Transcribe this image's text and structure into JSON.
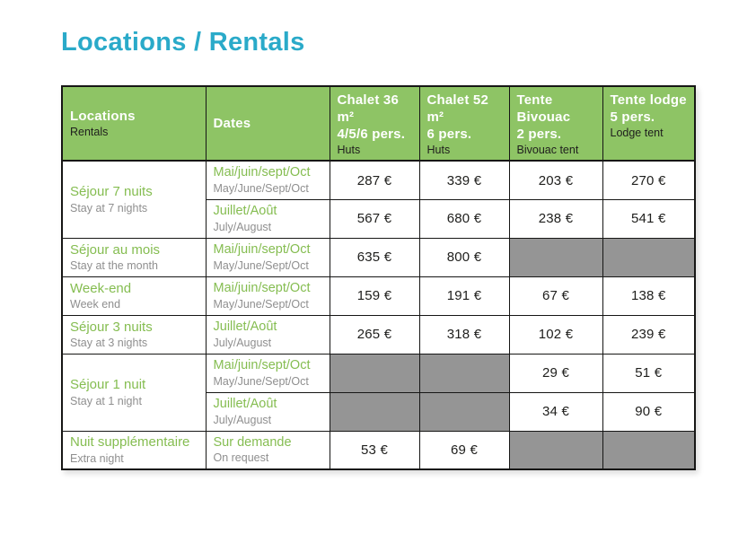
{
  "page": {
    "title": "Locations / Rentals"
  },
  "colors": {
    "title_accent": "#2aaac9",
    "header_green": "#8ec465",
    "label_green": "#85bd51",
    "subtitle_gray": "#8f8f8f",
    "unavailable_gray": "#959595",
    "border_black": "#161615"
  },
  "table": {
    "headers": [
      {
        "line1": "Locations",
        "line2": "Rentals"
      },
      {
        "line1": "Dates"
      },
      {
        "line1": "Chalet 36 m²",
        "line2": "4/5/6 pers.",
        "line3": "Huts"
      },
      {
        "line1": "Chalet 52 m²",
        "line2": "6 pers.",
        "line3": "Huts"
      },
      {
        "line1": "Tente Bivouac",
        "line2": "2 pers.",
        "line3": "Bivouac tent"
      },
      {
        "line1": "Tente lodge",
        "line2": "5 pers.",
        "line3": "Lodge tent"
      }
    ],
    "groups": [
      {
        "label_fr": "Séjour 7 nuits",
        "label_en": "Stay at 7 nights",
        "rows": [
          {
            "date_fr": "Mai/juin/sept/Oct",
            "date_en": "May/June/Sept/Oct",
            "prices": [
              "287 €",
              "339 €",
              "203 €",
              "270 €"
            ]
          },
          {
            "date_fr": "Juillet/Août",
            "date_en": "July/August",
            "prices": [
              "567 €",
              "680 €",
              "238 €",
              "541 €"
            ]
          }
        ]
      },
      {
        "label_fr": "Séjour au mois",
        "label_en": "Stay at the month",
        "rows": [
          {
            "date_fr": "Mai/juin/sept/Oct",
            "date_en": "May/June/Sept/Oct",
            "prices": [
              "635 €",
              "800 €",
              null,
              null
            ]
          }
        ]
      },
      {
        "label_fr": "Week-end",
        "label_en": "Week end",
        "rows": [
          {
            "date_fr": "Mai/juin/sept/Oct",
            "date_en": "May/June/Sept/Oct",
            "prices": [
              "159 €",
              "191 €",
              "67 €",
              "138 €"
            ]
          }
        ]
      },
      {
        "label_fr": "Séjour 3 nuits",
        "label_en": "Stay at 3 nights",
        "rows": [
          {
            "date_fr": "Juillet/Août",
            "date_en": "July/August",
            "prices": [
              "265 €",
              "318 €",
              "102 €",
              "239 €"
            ]
          }
        ]
      },
      {
        "label_fr": "Séjour 1 nuit",
        "label_en": "Stay at 1 night",
        "rows": [
          {
            "date_fr": "Mai/juin/sept/Oct",
            "date_en": "May/June/Sept/Oct",
            "prices": [
              null,
              null,
              "29 €",
              "51 €"
            ]
          },
          {
            "date_fr": "Juillet/Août",
            "date_en": "July/August",
            "prices": [
              null,
              null,
              "34 €",
              "90 €"
            ]
          }
        ]
      },
      {
        "label_fr": "Nuit supplémentaire",
        "label_en": "Extra night",
        "rows": [
          {
            "date_fr": "Sur demande",
            "date_en": "On request",
            "prices": [
              "53 €",
              "69 €",
              null,
              null
            ]
          }
        ]
      }
    ]
  }
}
